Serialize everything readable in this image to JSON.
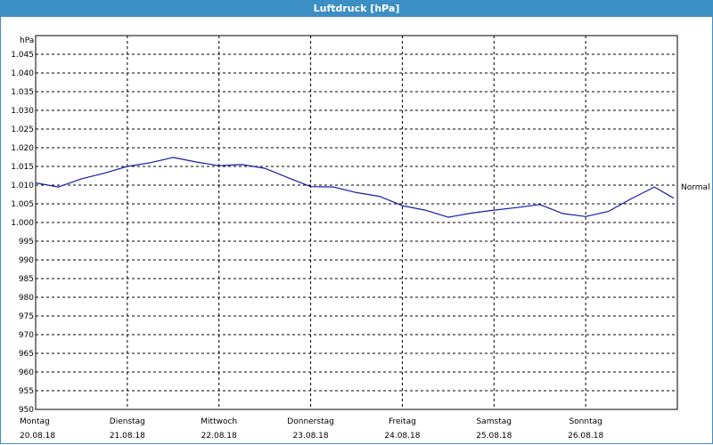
{
  "window": {
    "title": "Luftdruck [hPa]"
  },
  "chart_data": {
    "type": "line",
    "title": "Luftdruck [hPa]",
    "ylabel": "hPa",
    "ylim": [
      950,
      1050
    ],
    "yticks": [
      "950",
      "955",
      "960",
      "965",
      "970",
      "975",
      "980",
      "985",
      "990",
      "995",
      "1.000",
      "1.005",
      "1.010",
      "1.015",
      "1.020",
      "1.025",
      "1.030",
      "1.035",
      "1.040",
      "1.045"
    ],
    "x_days": [
      {
        "day": "Montag",
        "date": "20.08.18"
      },
      {
        "day": "Dienstag",
        "date": "21.08.18"
      },
      {
        "day": "Mittwoch",
        "date": "22.08.18"
      },
      {
        "day": "Donnerstag",
        "date": "23.08.18"
      },
      {
        "day": "Freitag",
        "date": "24.08.18"
      },
      {
        "day": "Samstag",
        "date": "25.08.18"
      },
      {
        "day": "Sonntag",
        "date": "26.08.18"
      }
    ],
    "grid": true,
    "series": [
      {
        "color": "#1a1aa6",
        "x_days": [
          0,
          0.25,
          0.5,
          0.75,
          1.0,
          1.25,
          1.5,
          1.75,
          2.0,
          2.25,
          2.5,
          2.75,
          3.0,
          3.25,
          3.5,
          3.75,
          4.0,
          4.25,
          4.5,
          4.75,
          5.0,
          5.25,
          5.5,
          5.75,
          6.0,
          6.25,
          6.5,
          6.75,
          6.96
        ],
        "values": [
          1010.6,
          1009.5,
          1011.7,
          1013.2,
          1015.0,
          1016.0,
          1017.4,
          1016.2,
          1015.2,
          1015.5,
          1014.5,
          1012.0,
          1009.6,
          1009.5,
          1008.0,
          1007.0,
          1004.5,
          1003.3,
          1001.4,
          1002.5,
          1003.3,
          1004.0,
          1004.8,
          1002.4,
          1001.6,
          1003.0,
          1006.4,
          1009.5,
          1006.5
        ]
      }
    ],
    "annotations": [
      {
        "text": "Normal",
        "value": 1005
      }
    ]
  }
}
